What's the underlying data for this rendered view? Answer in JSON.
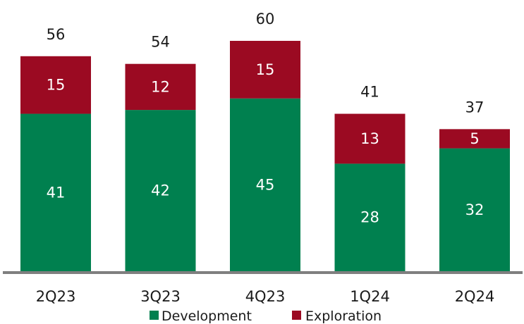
{
  "chart_data": {
    "type": "bar",
    "stacked": true,
    "categories": [
      "2Q23",
      "3Q23",
      "4Q23",
      "1Q24",
      "2Q24"
    ],
    "series": [
      {
        "name": "Development",
        "values": [
          41,
          42,
          45,
          28,
          32
        ],
        "color": "#00804f"
      },
      {
        "name": "Exploration",
        "values": [
          15,
          12,
          15,
          13,
          5
        ],
        "color": "#9b0a22"
      }
    ],
    "totals": [
      56,
      54,
      60,
      41,
      37
    ],
    "ylim": [
      0,
      60
    ],
    "grid": false,
    "legend": "bottom",
    "title": "",
    "xlabel": "",
    "ylabel": ""
  }
}
